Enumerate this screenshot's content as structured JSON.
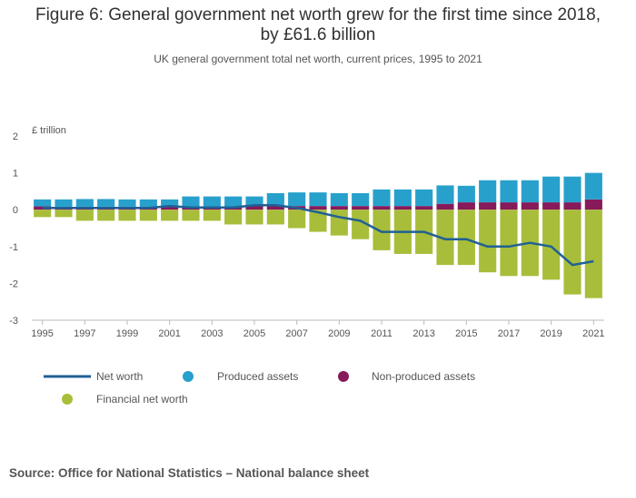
{
  "title_line1": "Figure 6: General government net worth grew for the first time since 2018,",
  "title_line2": "by £61.6 billion",
  "subtitle": "UK general government total net worth, current prices, 1995 to 2021",
  "source": "Source: Office for National Statistics – National balance sheet",
  "colors": {
    "net_worth": "#206095",
    "produced": "#27a0cc",
    "non_produced": "#871a5b",
    "financial": "#a8bd3a"
  },
  "chart_data": {
    "type": "bar",
    "stacked": true,
    "ylabel": "£ trillion",
    "ylim": [
      -3,
      2
    ],
    "yticks": [
      2,
      1,
      0,
      -1,
      -2,
      -3
    ],
    "xtick_labels": [
      "1995",
      "1997",
      "1999",
      "2001",
      "2003",
      "2005",
      "2007",
      "2009",
      "2011",
      "2013",
      "2015",
      "2017",
      "2019",
      "2021"
    ],
    "categories": [
      1995,
      1996,
      1997,
      1998,
      1999,
      2000,
      2001,
      2002,
      2003,
      2004,
      2005,
      2006,
      2007,
      2008,
      2009,
      2010,
      2011,
      2012,
      2013,
      2014,
      2015,
      2016,
      2017,
      2018,
      2019,
      2020,
      2021
    ],
    "series": [
      {
        "name": "Produced assets",
        "kind": "bar",
        "values": [
          0.19,
          0.2,
          0.21,
          0.21,
          0.2,
          0.2,
          0.2,
          0.28,
          0.28,
          0.28,
          0.26,
          0.35,
          0.37,
          0.37,
          0.35,
          0.35,
          0.45,
          0.45,
          0.45,
          0.5,
          0.45,
          0.6,
          0.6,
          0.6,
          0.7,
          0.7,
          0.72
        ]
      },
      {
        "name": "Non-produced assets",
        "kind": "bar",
        "values": [
          0.09,
          0.08,
          0.08,
          0.08,
          0.08,
          0.08,
          0.08,
          0.08,
          0.08,
          0.08,
          0.1,
          0.1,
          0.1,
          0.1,
          0.1,
          0.1,
          0.1,
          0.1,
          0.1,
          0.16,
          0.2,
          0.2,
          0.2,
          0.2,
          0.2,
          0.2,
          0.28
        ]
      },
      {
        "name": "Financial net worth",
        "kind": "bar",
        "values": [
          -0.2,
          -0.2,
          -0.3,
          -0.3,
          -0.3,
          -0.3,
          -0.3,
          -0.3,
          -0.3,
          -0.4,
          -0.4,
          -0.4,
          -0.5,
          -0.6,
          -0.7,
          -0.8,
          -1.1,
          -1.2,
          -1.2,
          -1.5,
          -1.5,
          -1.7,
          -1.8,
          -1.8,
          -1.9,
          -2.3,
          -2.4
        ]
      },
      {
        "name": "Net worth",
        "kind": "line",
        "values": [
          0.05,
          0.05,
          0.05,
          0.05,
          0.05,
          0.05,
          0.1,
          0.06,
          0.06,
          0.06,
          0.12,
          0.12,
          0.05,
          -0.07,
          -0.2,
          -0.3,
          -0.6,
          -0.6,
          -0.6,
          -0.8,
          -0.8,
          -1.0,
          -1.0,
          -0.9,
          -1.0,
          -1.5,
          -1.4
        ]
      }
    ],
    "legend": [
      "Net worth",
      "Produced assets",
      "Non-produced assets",
      "Financial net worth"
    ],
    "legend_position": "bottom",
    "grid": false
  }
}
